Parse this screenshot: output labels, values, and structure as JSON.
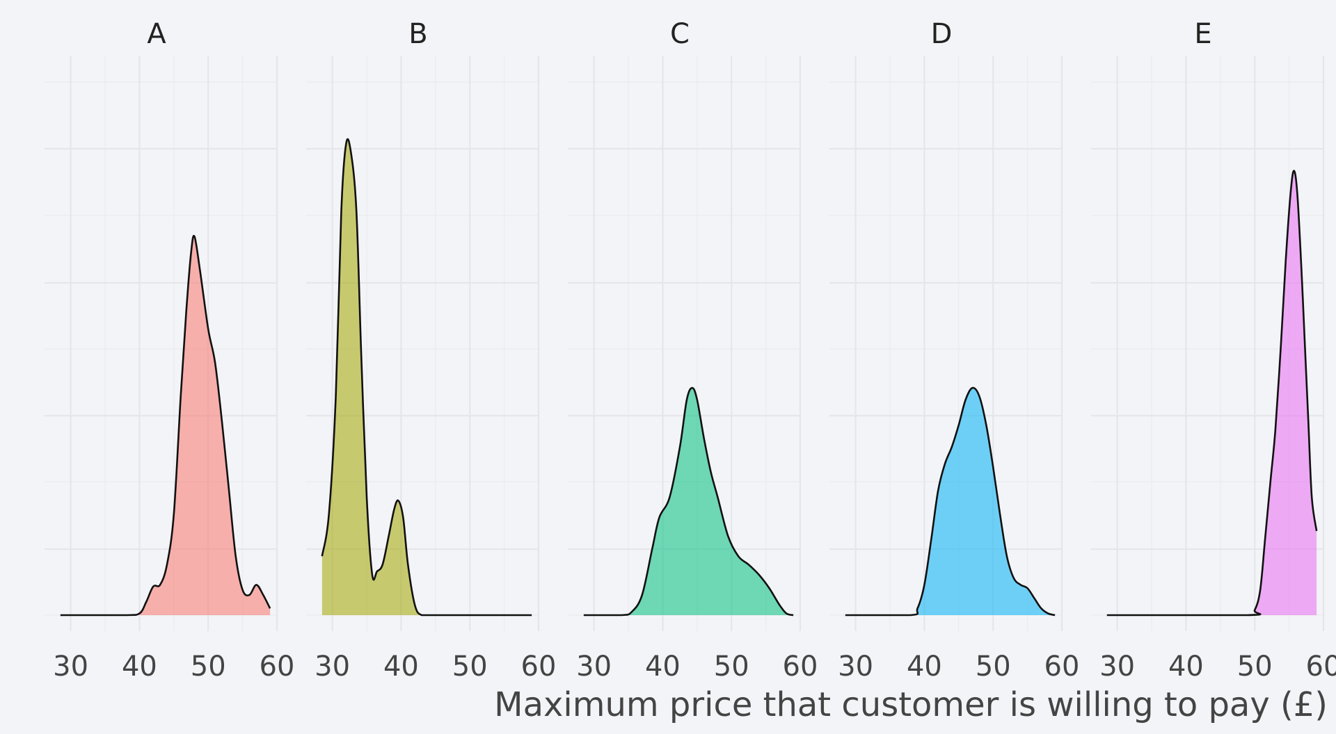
{
  "chart_data": {
    "type": "area",
    "subtype": "faceted-density",
    "title": "",
    "xlabel": "Maximum price that customer is willing to pay (£)",
    "ylabel": "",
    "xlim": [
      27,
      60
    ],
    "ylim": [
      0,
      0.32
    ],
    "x_ticks": [
      30,
      40,
      50,
      60
    ],
    "x_tick_labels": [
      "30",
      "40",
      "50",
      "60"
    ],
    "y_tick_labels_shown": false,
    "grid": true,
    "legend": "none",
    "facets": [
      {
        "name": "A",
        "color": "#F8766D",
        "x": [
          28.5,
          38.0,
          40.0,
          41.0,
          42.0,
          43.0,
          44.0,
          45.0,
          46.0,
          46.8,
          47.5,
          48.0,
          48.8,
          50.0,
          51.0,
          52.0,
          53.0,
          54.0,
          55.0,
          56.0,
          57.0,
          58.0,
          59.0
        ],
        "y": [
          0.0,
          0.0,
          0.001,
          0.008,
          0.017,
          0.018,
          0.03,
          0.06,
          0.13,
          0.18,
          0.215,
          0.225,
          0.205,
          0.17,
          0.15,
          0.115,
          0.075,
          0.035,
          0.015,
          0.012,
          0.018,
          0.012,
          0.004
        ]
      },
      {
        "name": "B",
        "color": "#A3A500",
        "x": [
          28.5,
          29.5,
          30.5,
          31.3,
          32.0,
          32.7,
          33.5,
          34.2,
          35.0,
          35.8,
          36.5,
          37.3,
          38.2,
          39.0,
          39.6,
          40.3,
          41.0,
          42.0,
          43.0,
          45.0,
          59.0
        ],
        "y": [
          0.035,
          0.06,
          0.13,
          0.24,
          0.28,
          0.275,
          0.24,
          0.155,
          0.07,
          0.024,
          0.026,
          0.03,
          0.047,
          0.063,
          0.068,
          0.058,
          0.03,
          0.006,
          0.0,
          0.0,
          0.0
        ],
        "y_scale_note": "shown taller than others"
      },
      {
        "name": "C",
        "color": "#00BF7D",
        "x": [
          28.5,
          34.0,
          35.5,
          37.0,
          38.5,
          39.5,
          41.0,
          42.5,
          43.5,
          44.3,
          45.0,
          46.0,
          47.0,
          48.0,
          49.5,
          51.0,
          52.5,
          54.0,
          55.5,
          57.0,
          58.0,
          59.0
        ],
        "y": [
          0.0,
          0.0,
          0.002,
          0.012,
          0.04,
          0.058,
          0.07,
          0.1,
          0.128,
          0.135,
          0.128,
          0.105,
          0.085,
          0.07,
          0.047,
          0.035,
          0.03,
          0.024,
          0.016,
          0.006,
          0.001,
          0.0
        ]
      },
      {
        "name": "D",
        "color": "#00B0F6",
        "x": [
          28.5,
          38.0,
          39.0,
          40.0,
          41.0,
          42.0,
          43.0,
          44.0,
          45.0,
          46.0,
          47.0,
          48.0,
          49.0,
          50.0,
          51.0,
          52.0,
          53.0,
          54.0,
          55.0,
          56.0,
          57.0,
          58.0,
          59.0
        ],
        "y": [
          0.0,
          0.0,
          0.004,
          0.018,
          0.045,
          0.074,
          0.09,
          0.1,
          0.113,
          0.128,
          0.135,
          0.13,
          0.113,
          0.088,
          0.06,
          0.035,
          0.022,
          0.018,
          0.016,
          0.01,
          0.004,
          0.001,
          0.0
        ]
      },
      {
        "name": "E",
        "color": "#E76BF3",
        "x": [
          28.5,
          49.0,
          50.0,
          50.8,
          51.5,
          52.3,
          53.0,
          53.8,
          54.5,
          55.2,
          55.7,
          56.2,
          56.8,
          57.3,
          57.8,
          58.3,
          59.0
        ],
        "y": [
          0.0,
          0.0,
          0.003,
          0.015,
          0.045,
          0.08,
          0.11,
          0.16,
          0.21,
          0.25,
          0.264,
          0.25,
          0.205,
          0.16,
          0.115,
          0.07,
          0.05
        ]
      }
    ]
  }
}
